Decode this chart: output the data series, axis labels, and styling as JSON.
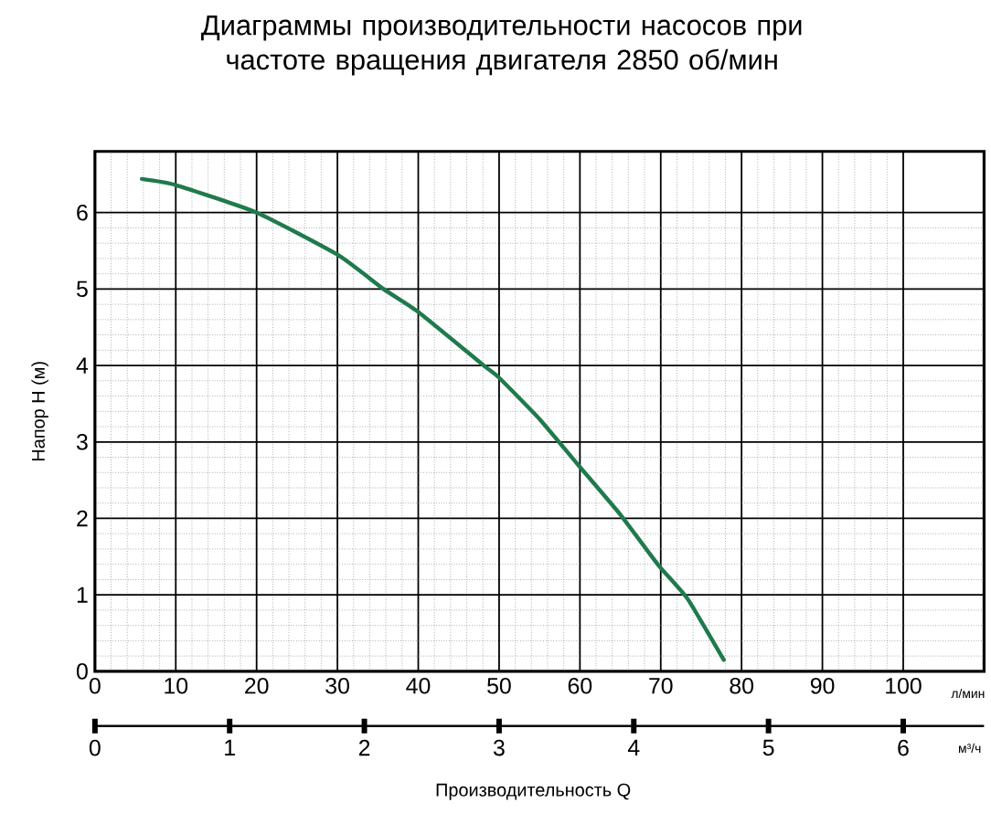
{
  "chart_data": {
    "type": "line",
    "title": "Диаграммы производительности насосов при частоте вращения двигателя 2850 об/мин",
    "ylabel": "Напор H (м)",
    "xlabel": "л/мин",
    "x2label": "м³/ч",
    "annotations": [
      "Производительность Q"
    ],
    "xlim": [
      0,
      110
    ],
    "xticks": [
      0,
      10,
      20,
      30,
      40,
      50,
      60,
      70,
      80,
      90,
      100
    ],
    "x2lim": [
      0,
      6.6
    ],
    "x2ticks": [
      0,
      1,
      2,
      3,
      4,
      5,
      6
    ],
    "ylim": [
      0,
      6.8
    ],
    "yticks": [
      0,
      1,
      2,
      3,
      4,
      5,
      6
    ],
    "grid": true,
    "series": [
      {
        "color": "#1f7a4c",
        "x": [
          5.8,
          10,
          20,
          30,
          35.7,
          40,
          48.1,
          50,
          55,
          59.7,
          65,
          69.7,
          73.3,
          77.8
        ],
        "values": [
          6.44,
          6.36,
          6.0,
          5.45,
          5.0,
          4.7,
          4.0,
          3.84,
          3.3,
          2.71,
          2.05,
          1.39,
          0.95,
          0.15
        ]
      }
    ]
  }
}
